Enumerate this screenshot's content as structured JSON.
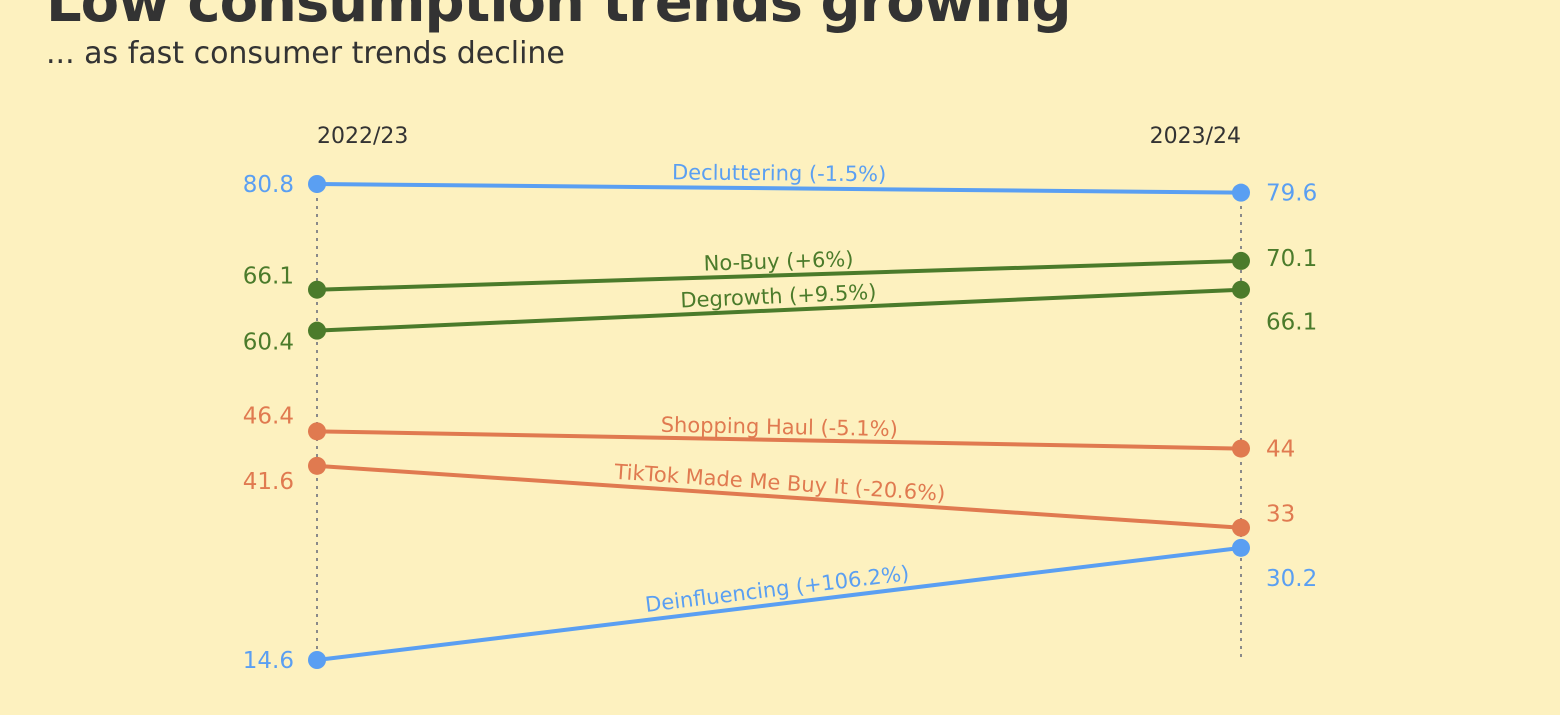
{
  "chart_data": {
    "type": "line",
    "title": "Low consumption trends growing",
    "subtitle": "... as fast consumer trends decline",
    "categories": [
      "2022/23",
      "2023/24"
    ],
    "series": [
      {
        "name": "Decluttering (-1.5%)",
        "values": [
          80.8,
          79.6
        ],
        "color": "#5a9ff2"
      },
      {
        "name": "No-Buy (+6%)",
        "values": [
          66.1,
          70.1
        ],
        "color": "#4b7b2b"
      },
      {
        "name": "Degrowth (+9.5%)",
        "values": [
          60.4,
          66.1
        ],
        "color": "#4b7b2b"
      },
      {
        "name": "Shopping Haul (-5.1%)",
        "values": [
          46.4,
          44
        ],
        "color": "#e07a50"
      },
      {
        "name": "TikTok Made Me Buy It (-20.6%)",
        "values": [
          41.6,
          33
        ],
        "color": "#e07a50"
      },
      {
        "name": "Deinfluencing (+106.2%)",
        "values": [
          14.6,
          30.2
        ],
        "color": "#5a9ff2"
      }
    ],
    "grid": false,
    "legend": "none"
  }
}
